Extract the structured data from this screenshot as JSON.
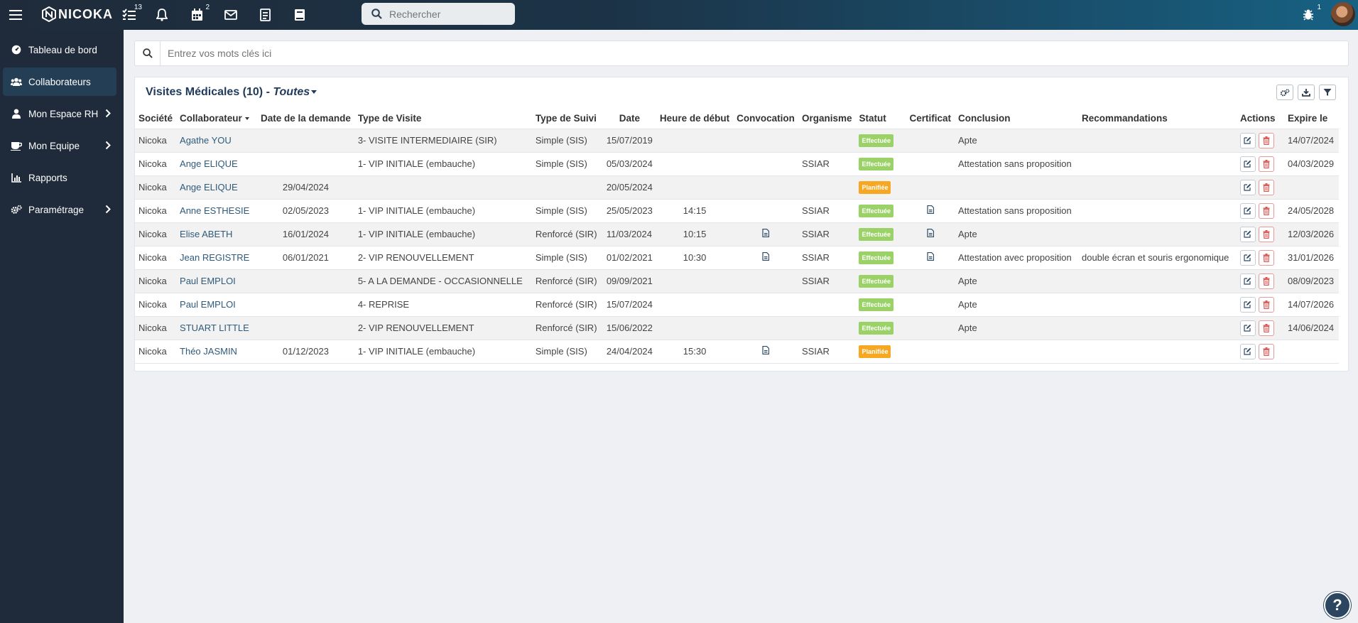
{
  "app": {
    "brand": "NICOKA"
  },
  "topbar": {
    "tasks_badge": "13",
    "calendar_badge": "2",
    "notif_badge": "1",
    "search_placeholder": "Rechercher"
  },
  "sidebar": {
    "items": [
      {
        "label": "Tableau de bord",
        "icon": "dashboard-icon"
      },
      {
        "label": "Collaborateurs",
        "icon": "users-icon"
      },
      {
        "label": "Mon Espace RH",
        "icon": "user-icon"
      },
      {
        "label": "Mon Equipe",
        "icon": "coffee-icon"
      },
      {
        "label": "Rapports",
        "icon": "chart-icon"
      },
      {
        "label": "Paramétrage",
        "icon": "cogs-icon"
      }
    ]
  },
  "keyword_search": {
    "placeholder": "Entrez vos mots clés ici"
  },
  "panel": {
    "title": "Visites Médicales (10) - ",
    "filter": "Toutes"
  },
  "table": {
    "headers": [
      "Société",
      "Collaborateur",
      "Date de la demande",
      "Type de Visite",
      "Type de Suivi",
      "Date",
      "Heure de début",
      "Convocation",
      "Organisme",
      "Statut",
      "Certificat",
      "Conclusion",
      "Recommandations",
      "Actions",
      "Expire le"
    ],
    "rows": [
      {
        "societe": "Nicoka",
        "collab": "Agathe YOU",
        "demande": "",
        "visite": "3- VISITE INTERMEDIAIRE (SIR)",
        "suivi": "Simple (SIS)",
        "date": "15/07/2019",
        "heure": "",
        "convoc": false,
        "organisme": "",
        "statut": "Effectuée",
        "certif": false,
        "conclusion": "Apte",
        "recommandations": "",
        "expire": "14/07/2024"
      },
      {
        "societe": "Nicoka",
        "collab": "Ange ELIQUE",
        "demande": "",
        "visite": "1- VIP INITIALE (embauche)",
        "suivi": "Simple (SIS)",
        "date": "05/03/2024",
        "heure": "",
        "convoc": false,
        "organisme": "SSIAR",
        "statut": "Effectuée",
        "certif": false,
        "conclusion": "Attestation sans proposition",
        "recommandations": "",
        "expire": "04/03/2029"
      },
      {
        "societe": "Nicoka",
        "collab": "Ange ELIQUE",
        "demande": "29/04/2024",
        "visite": "",
        "suivi": "",
        "date": "20/05/2024",
        "heure": "",
        "convoc": false,
        "organisme": "",
        "statut": "Planifiée",
        "certif": false,
        "conclusion": "",
        "recommandations": "",
        "expire": ""
      },
      {
        "societe": "Nicoka",
        "collab": "Anne ESTHESIE",
        "demande": "02/05/2023",
        "visite": "1- VIP INITIALE (embauche)",
        "suivi": "Simple (SIS)",
        "date": "25/05/2023",
        "heure": "14:15",
        "convoc": false,
        "organisme": "SSIAR",
        "statut": "Effectuée",
        "certif": true,
        "conclusion": "Attestation sans proposition",
        "recommandations": "",
        "expire": "24/05/2028"
      },
      {
        "societe": "Nicoka",
        "collab": "Elise ABETH",
        "demande": "16/01/2024",
        "visite": "1- VIP INITIALE (embauche)",
        "suivi": "Renforcé (SIR)",
        "date": "11/03/2024",
        "heure": "10:15",
        "convoc": true,
        "organisme": "SSIAR",
        "statut": "Effectuée",
        "certif": true,
        "conclusion": "Apte",
        "recommandations": "",
        "expire": "12/03/2026"
      },
      {
        "societe": "Nicoka",
        "collab": "Jean REGISTRE",
        "demande": "06/01/2021",
        "visite": "2- VIP RENOUVELLEMENT",
        "suivi": "Simple (SIS)",
        "date": "01/02/2021",
        "heure": "10:30",
        "convoc": true,
        "organisme": "SSIAR",
        "statut": "Effectuée",
        "certif": true,
        "conclusion": "Attestation avec proposition",
        "recommandations": "double écran et souris ergonomique",
        "expire": "31/01/2026"
      },
      {
        "societe": "Nicoka",
        "collab": "Paul EMPLOI",
        "demande": "",
        "visite": "5- A LA DEMANDE - OCCASIONNELLE",
        "suivi": "Renforcé (SIR)",
        "date": "09/09/2021",
        "heure": "",
        "convoc": false,
        "organisme": "SSIAR",
        "statut": "Effectuée",
        "certif": false,
        "conclusion": "Apte",
        "recommandations": "",
        "expire": "08/09/2023"
      },
      {
        "societe": "Nicoka",
        "collab": "Paul EMPLOI",
        "demande": "",
        "visite": "4- REPRISE",
        "suivi": "Renforcé (SIR)",
        "date": "15/07/2024",
        "heure": "",
        "convoc": false,
        "organisme": "",
        "statut": "Effectuée",
        "certif": false,
        "conclusion": "Apte",
        "recommandations": "",
        "expire": "14/07/2026"
      },
      {
        "societe": "Nicoka",
        "collab": "STUART LITTLE",
        "demande": "",
        "visite": "2- VIP RENOUVELLEMENT",
        "suivi": "Renforcé (SIR)",
        "date": "15/06/2022",
        "heure": "",
        "convoc": false,
        "organisme": "",
        "statut": "Effectuée",
        "certif": false,
        "conclusion": "Apte",
        "recommandations": "",
        "expire": "14/06/2024"
      },
      {
        "societe": "Nicoka",
        "collab": "Théo JASMIN",
        "demande": "01/12/2023",
        "visite": "1- VIP INITIALE (embauche)",
        "suivi": "Simple (SIS)",
        "date": "24/04/2024",
        "heure": "15:30",
        "convoc": true,
        "organisme": "SSIAR",
        "statut": "Planifiée",
        "certif": false,
        "conclusion": "",
        "recommandations": "",
        "expire": ""
      }
    ]
  },
  "help": {
    "label": "?"
  },
  "colors": {
    "topbar": "#1f2b3a",
    "sidebar": "#1f2b3a",
    "effectuee": "#9bd267",
    "planifiee": "#f7a823",
    "title": "#1f3a5a"
  }
}
